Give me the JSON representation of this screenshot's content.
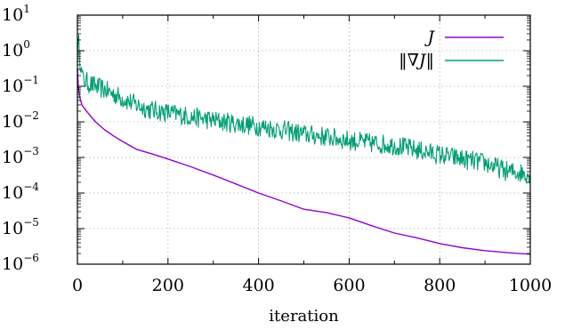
{
  "chart_data": {
    "type": "line",
    "xlabel": "iteration",
    "ylabel": "",
    "xlim": [
      0,
      1000
    ],
    "ylim": [
      1e-06,
      10
    ],
    "yscale": "log",
    "grid": true,
    "legend_position": "top-right",
    "x_ticks": [
      0,
      200,
      400,
      600,
      800,
      1000
    ],
    "x_tick_labels": [
      "0",
      "200",
      "400",
      "600",
      "800",
      "1000"
    ],
    "y_ticks": [
      1e-06,
      1e-05,
      0.0001,
      0.001,
      0.01,
      0.1,
      1,
      10
    ],
    "y_tick_labels": [
      {
        "base": "10",
        "exp": "−6"
      },
      {
        "base": "10",
        "exp": "−5"
      },
      {
        "base": "10",
        "exp": "−4"
      },
      {
        "base": "10",
        "exp": "−3"
      },
      {
        "base": "10",
        "exp": "−2"
      },
      {
        "base": "10",
        "exp": "−1"
      },
      {
        "base": "10",
        "exp": "0"
      },
      {
        "base": "10",
        "exp": "1"
      }
    ],
    "series": [
      {
        "name": "J",
        "color": "#9400d3",
        "x": [
          0,
          2,
          5,
          10,
          20,
          40,
          60,
          80,
          100,
          130,
          170,
          200,
          250,
          300,
          350,
          400,
          450,
          500,
          550,
          600,
          650,
          700,
          750,
          800,
          850,
          900,
          950,
          1000
        ],
        "y": [
          0.3,
          0.1,
          0.05,
          0.03,
          0.02,
          0.01,
          0.006,
          0.004,
          0.0028,
          0.0017,
          0.0012,
          0.0009,
          0.00055,
          0.00032,
          0.00018,
          0.0001,
          6e-05,
          3.5e-05,
          2.8e-05,
          2e-05,
          1.2e-05,
          7.5e-06,
          5.5e-06,
          3.8e-06,
          2.9e-06,
          2.4e-06,
          2.1e-06,
          1.9e-06
        ]
      },
      {
        "name": "‖∇J‖",
        "color": "#009e73",
        "noisy": true,
        "x": [
          0,
          3,
          6,
          10,
          15,
          25,
          40,
          60,
          80,
          100,
          130,
          160,
          200,
          250,
          300,
          350,
          400,
          450,
          500,
          550,
          600,
          650,
          700,
          750,
          800,
          850,
          900,
          950,
          1000
        ],
        "y": [
          1.0,
          2.0,
          0.4,
          0.25,
          0.15,
          0.12,
          0.1,
          0.08,
          0.06,
          0.045,
          0.03,
          0.022,
          0.018,
          0.014,
          0.011,
          0.009,
          0.0075,
          0.006,
          0.0045,
          0.0038,
          0.003,
          0.0025,
          0.0022,
          0.0016,
          0.0012,
          0.0009,
          0.0007,
          0.0004,
          0.00035
        ]
      }
    ]
  }
}
